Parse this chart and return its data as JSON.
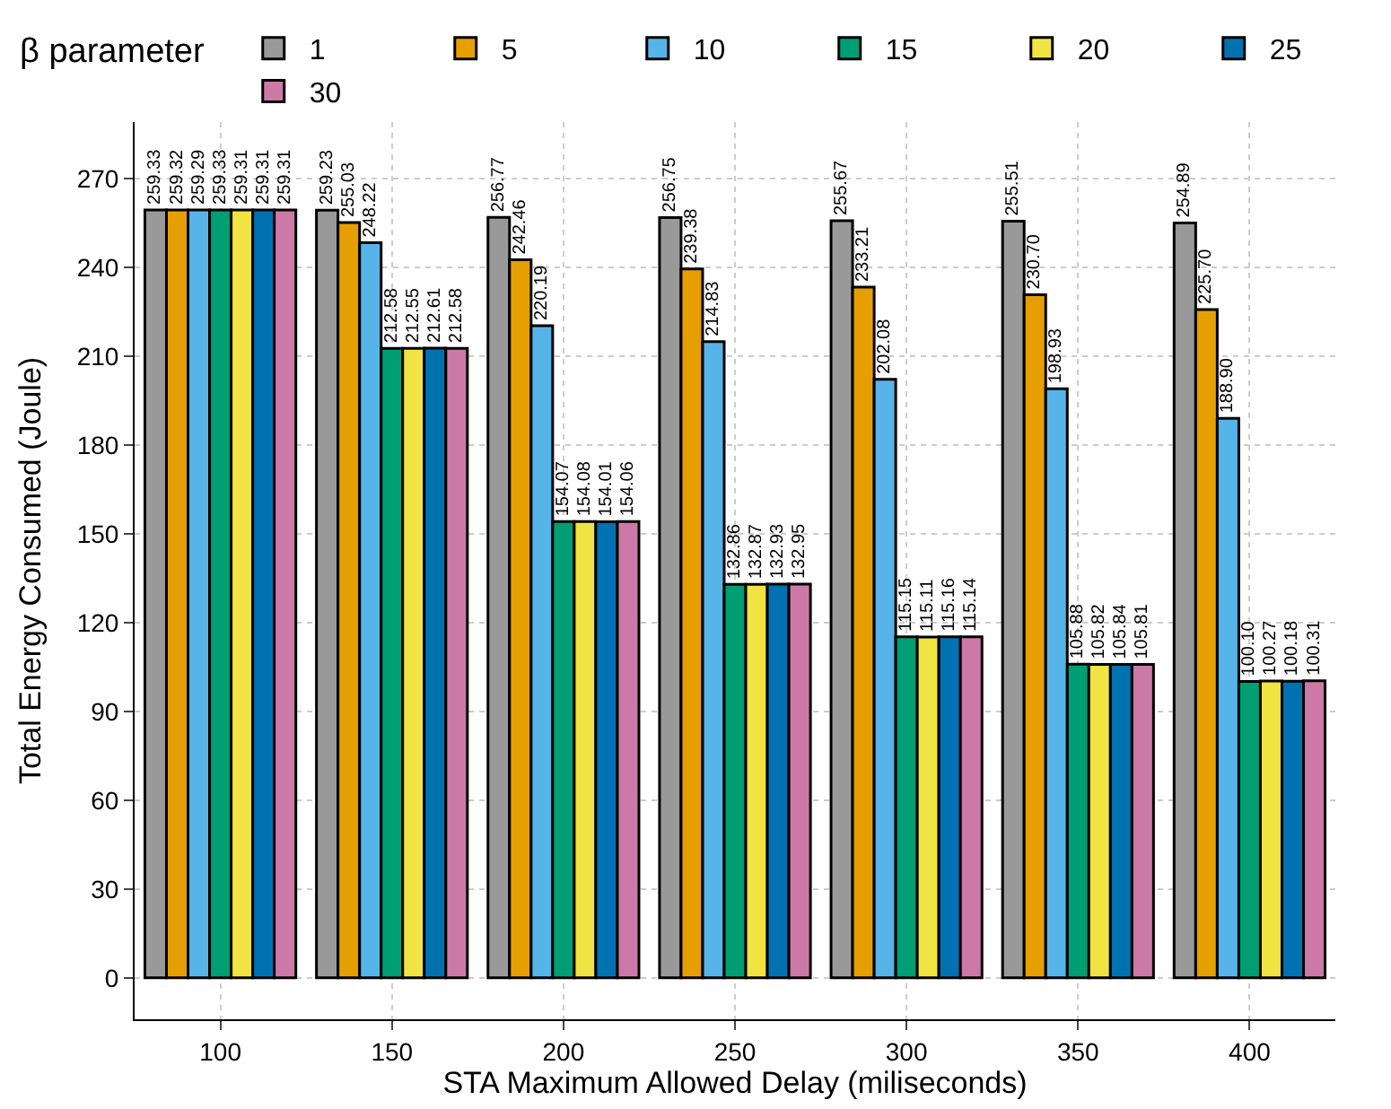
{
  "chart_data": {
    "type": "bar",
    "xlabel": "STA Maximum Allowed Delay (miliseconds)",
    "ylabel": "Total Energy Consumed (Joule)",
    "legend_title": "β parameter",
    "categories": [
      "100",
      "150",
      "200",
      "250",
      "300",
      "350",
      "400"
    ],
    "series": [
      {
        "name": "1",
        "color": "#999999",
        "values": [
          259.33,
          259.23,
          256.77,
          256.75,
          255.67,
          255.51,
          254.89
        ],
        "value_labels": [
          "259.33",
          "259.23",
          "256.77",
          "256.75",
          "255.67",
          "255.51",
          "254.89"
        ]
      },
      {
        "name": "5",
        "color": "#e69f00",
        "values": [
          259.32,
          255.03,
          242.46,
          239.38,
          233.21,
          230.7,
          225.7
        ],
        "value_labels": [
          "259.32",
          "255.03",
          "242.46",
          "239.38",
          "233.21",
          "230.70",
          "225.70"
        ]
      },
      {
        "name": "10",
        "color": "#56b4e9",
        "values": [
          259.29,
          248.22,
          220.19,
          214.83,
          202.08,
          198.93,
          188.9
        ],
        "value_labels": [
          "259.29",
          "248.22",
          "220.19",
          "214.83",
          "202.08",
          "198.93",
          "188.90"
        ]
      },
      {
        "name": "15",
        "color": "#009e73",
        "values": [
          259.33,
          212.58,
          154.07,
          132.86,
          115.15,
          105.88,
          100.1
        ],
        "value_labels": [
          "259.33",
          "212.58",
          "154.07",
          "132.86",
          "115.15",
          "105.88",
          "100.10"
        ]
      },
      {
        "name": "20",
        "color": "#f0e442",
        "values": [
          259.31,
          212.55,
          154.08,
          132.87,
          115.11,
          105.82,
          100.27
        ],
        "value_labels": [
          "259.31",
          "212.55",
          "154.08",
          "132.87",
          "115.11",
          "105.82",
          "100.27"
        ]
      },
      {
        "name": "25",
        "color": "#0072b2",
        "values": [
          259.31,
          212.61,
          154.01,
          132.93,
          115.16,
          105.84,
          100.18
        ],
        "value_labels": [
          "259.31",
          "212.61",
          "154.01",
          "132.93",
          "115.16",
          "105.84",
          "100.18"
        ]
      },
      {
        "name": "30",
        "color": "#cc79a7",
        "values": [
          259.31,
          212.58,
          154.06,
          132.95,
          115.14,
          105.81,
          100.31
        ],
        "value_labels": [
          "259.31",
          "212.58",
          "154.06",
          "132.95",
          "115.14",
          "105.81",
          "100.31"
        ]
      }
    ],
    "ylim": [
      -14,
      289
    ],
    "yticks": [
      0,
      30,
      60,
      90,
      120,
      150,
      180,
      210,
      240,
      270
    ],
    "grid": true,
    "legend": "top"
  }
}
